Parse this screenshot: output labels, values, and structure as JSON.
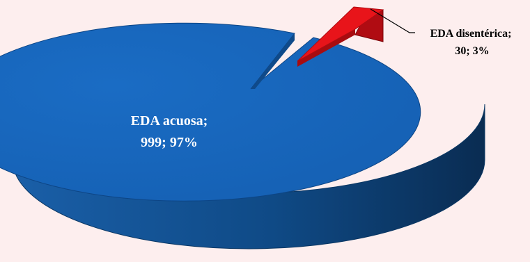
{
  "chart_data": {
    "type": "pie",
    "style": "3d-exploded",
    "series": [
      {
        "values": [
          {
            "name": "EDA acuosa",
            "label": "EDA acuosa;",
            "value_label": "999; 97%",
            "value": 999,
            "percent": 97,
            "color": "#1565c0"
          },
          {
            "name": "EDA disentérica",
            "label": "EDA disentérica;",
            "value_label": "30; 3%",
            "value": 30,
            "percent": 3,
            "color": "#e8141a"
          }
        ]
      }
    ],
    "colors": {
      "background": "#fdeeee",
      "acuosa_top": "#1565c0",
      "acuosa_side": "#0e3f73",
      "disenterica_top": "#e8141a",
      "disenterica_side": "#a80c10",
      "label_acuosa": "#ffffff",
      "label_disenterica": "#000000",
      "leader_line": "#000000"
    }
  }
}
